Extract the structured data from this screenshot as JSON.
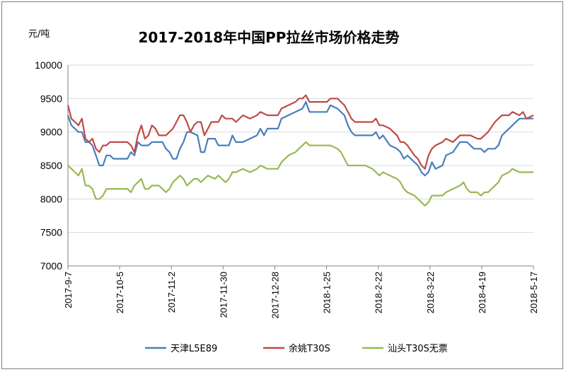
{
  "chart_data": {
    "type": "line",
    "title": "2017-2018年中国PP拉丝市场价格走势",
    "ylabel": "元/吨",
    "xlabel": "",
    "ylim": [
      7000,
      10000
    ],
    "y_ticks": [
      "10000",
      "9500",
      "9000",
      "8500",
      "8000",
      "7500",
      "7000"
    ],
    "x_tick_labels": [
      "2017-9-7",
      "2017-10-5",
      "2017-11-2",
      "2017-11-30",
      "2017-12-28",
      "2018-1-25",
      "2018-2-22",
      "2018-3-22",
      "2018-4-19",
      "2018-5-17"
    ],
    "grid": true,
    "legend_position": "bottom",
    "x_is_week_index": true,
    "series": [
      {
        "name": "天津L5E89",
        "color": "#4a7ebb",
        "points": [
          [
            0,
            9250
          ],
          [
            0.2,
            9100
          ],
          [
            0.4,
            9050
          ],
          [
            0.6,
            9000
          ],
          [
            0.8,
            9000
          ],
          [
            1.0,
            8850
          ],
          [
            1.2,
            8850
          ],
          [
            1.4,
            8800
          ],
          [
            1.6,
            8650
          ],
          [
            1.8,
            8500
          ],
          [
            2.0,
            8500
          ],
          [
            2.2,
            8650
          ],
          [
            2.4,
            8650
          ],
          [
            2.6,
            8600
          ],
          [
            3.0,
            8600
          ],
          [
            3.4,
            8600
          ],
          [
            3.6,
            8700
          ],
          [
            3.8,
            8650
          ],
          [
            4.0,
            8850
          ],
          [
            4.2,
            8800
          ],
          [
            4.6,
            8800
          ],
          [
            4.8,
            8850
          ],
          [
            5.2,
            8850
          ],
          [
            5.4,
            8850
          ],
          [
            5.6,
            8750
          ],
          [
            5.8,
            8700
          ],
          [
            6.0,
            8600
          ],
          [
            6.2,
            8600
          ],
          [
            6.4,
            8750
          ],
          [
            6.6,
            8850
          ],
          [
            6.8,
            9000
          ],
          [
            7.0,
            9000
          ],
          [
            7.4,
            8950
          ],
          [
            7.6,
            8700
          ],
          [
            7.8,
            8700
          ],
          [
            8.0,
            8900
          ],
          [
            8.4,
            8900
          ],
          [
            8.6,
            8800
          ],
          [
            9.2,
            8800
          ],
          [
            9.4,
            8950
          ],
          [
            9.6,
            8850
          ],
          [
            10.0,
            8850
          ],
          [
            10.4,
            8900
          ],
          [
            10.8,
            8950
          ],
          [
            11.0,
            9050
          ],
          [
            11.2,
            8950
          ],
          [
            11.4,
            9050
          ],
          [
            12.0,
            9050
          ],
          [
            12.2,
            9200
          ],
          [
            12.6,
            9250
          ],
          [
            13.0,
            9300
          ],
          [
            13.4,
            9350
          ],
          [
            13.6,
            9450
          ],
          [
            13.8,
            9300
          ],
          [
            14.4,
            9300
          ],
          [
            14.8,
            9300
          ],
          [
            15.0,
            9400
          ],
          [
            15.4,
            9350
          ],
          [
            15.6,
            9300
          ],
          [
            15.8,
            9250
          ],
          [
            16.0,
            9100
          ],
          [
            16.2,
            9000
          ],
          [
            16.4,
            8950
          ],
          [
            17.0,
            8950
          ],
          [
            17.4,
            8950
          ],
          [
            17.6,
            9000
          ],
          [
            17.8,
            8900
          ],
          [
            18.0,
            8950
          ],
          [
            18.4,
            8800
          ],
          [
            18.8,
            8750
          ],
          [
            19.0,
            8700
          ],
          [
            19.2,
            8600
          ],
          [
            19.4,
            8650
          ],
          [
            19.8,
            8550
          ],
          [
            20.0,
            8500
          ],
          [
            20.2,
            8400
          ],
          [
            20.4,
            8350
          ],
          [
            20.6,
            8400
          ],
          [
            20.8,
            8550
          ],
          [
            21.0,
            8450
          ],
          [
            21.4,
            8500
          ],
          [
            21.6,
            8650
          ],
          [
            22.0,
            8700
          ],
          [
            22.4,
            8850
          ],
          [
            22.8,
            8850
          ],
          [
            23.0,
            8800
          ],
          [
            23.2,
            8750
          ],
          [
            23.6,
            8750
          ],
          [
            23.8,
            8700
          ],
          [
            24.0,
            8750
          ],
          [
            24.4,
            8750
          ],
          [
            24.6,
            8800
          ],
          [
            24.8,
            8950
          ],
          [
            25.2,
            9050
          ],
          [
            25.4,
            9100
          ],
          [
            25.8,
            9200
          ],
          [
            26.0,
            9200
          ],
          [
            26.6,
            9200
          ]
        ]
      },
      {
        "name": "余姚T30S",
        "color": "#be4b48",
        "points": [
          [
            0,
            9400
          ],
          [
            0.2,
            9200
          ],
          [
            0.4,
            9150
          ],
          [
            0.6,
            9100
          ],
          [
            0.8,
            9200
          ],
          [
            1.0,
            8900
          ],
          [
            1.2,
            8850
          ],
          [
            1.4,
            8900
          ],
          [
            1.6,
            8750
          ],
          [
            1.8,
            8700
          ],
          [
            2.0,
            8800
          ],
          [
            2.2,
            8800
          ],
          [
            2.4,
            8850
          ],
          [
            3.0,
            8850
          ],
          [
            3.4,
            8850
          ],
          [
            3.6,
            8800
          ],
          [
            3.8,
            8700
          ],
          [
            4.0,
            8950
          ],
          [
            4.2,
            9100
          ],
          [
            4.4,
            8900
          ],
          [
            4.6,
            8950
          ],
          [
            4.8,
            9100
          ],
          [
            5.0,
            9050
          ],
          [
            5.2,
            8950
          ],
          [
            5.4,
            8950
          ],
          [
            5.6,
            8950
          ],
          [
            5.8,
            9000
          ],
          [
            6.0,
            9050
          ],
          [
            6.2,
            9150
          ],
          [
            6.4,
            9250
          ],
          [
            6.6,
            9250
          ],
          [
            6.8,
            9150
          ],
          [
            7.0,
            9000
          ],
          [
            7.2,
            9100
          ],
          [
            7.4,
            9150
          ],
          [
            7.6,
            9150
          ],
          [
            7.8,
            8950
          ],
          [
            8.0,
            9050
          ],
          [
            8.2,
            9150
          ],
          [
            8.6,
            9150
          ],
          [
            8.8,
            9250
          ],
          [
            9.0,
            9200
          ],
          [
            9.4,
            9200
          ],
          [
            9.6,
            9150
          ],
          [
            10.0,
            9250
          ],
          [
            10.4,
            9200
          ],
          [
            10.8,
            9250
          ],
          [
            11.0,
            9300
          ],
          [
            11.4,
            9250
          ],
          [
            11.6,
            9250
          ],
          [
            12.0,
            9250
          ],
          [
            12.2,
            9350
          ],
          [
            12.6,
            9400
          ],
          [
            13.0,
            9450
          ],
          [
            13.2,
            9500
          ],
          [
            13.4,
            9500
          ],
          [
            13.6,
            9550
          ],
          [
            13.8,
            9450
          ],
          [
            14.4,
            9450
          ],
          [
            14.8,
            9450
          ],
          [
            15.0,
            9500
          ],
          [
            15.4,
            9500
          ],
          [
            15.6,
            9450
          ],
          [
            15.8,
            9400
          ],
          [
            16.0,
            9300
          ],
          [
            16.2,
            9200
          ],
          [
            16.4,
            9150
          ],
          [
            17.0,
            9150
          ],
          [
            17.4,
            9150
          ],
          [
            17.6,
            9200
          ],
          [
            17.8,
            9100
          ],
          [
            18.0,
            9100
          ],
          [
            18.4,
            9050
          ],
          [
            18.8,
            8950
          ],
          [
            19.0,
            8850
          ],
          [
            19.2,
            8850
          ],
          [
            19.4,
            8800
          ],
          [
            19.8,
            8650
          ],
          [
            20.0,
            8600
          ],
          [
            20.2,
            8500
          ],
          [
            20.4,
            8450
          ],
          [
            20.6,
            8650
          ],
          [
            20.8,
            8750
          ],
          [
            21.0,
            8800
          ],
          [
            21.4,
            8850
          ],
          [
            21.6,
            8900
          ],
          [
            22.0,
            8850
          ],
          [
            22.4,
            8950
          ],
          [
            22.8,
            8950
          ],
          [
            23.0,
            8950
          ],
          [
            23.4,
            8900
          ],
          [
            23.6,
            8900
          ],
          [
            23.8,
            8950
          ],
          [
            24.0,
            9000
          ],
          [
            24.4,
            9150
          ],
          [
            24.6,
            9200
          ],
          [
            24.8,
            9250
          ],
          [
            25.2,
            9250
          ],
          [
            25.4,
            9300
          ],
          [
            25.8,
            9250
          ],
          [
            26.0,
            9300
          ],
          [
            26.2,
            9200
          ],
          [
            26.6,
            9250
          ]
        ]
      },
      {
        "name": "汕头T30S无票",
        "color": "#98b954",
        "points": [
          [
            0,
            8500
          ],
          [
            0.2,
            8450
          ],
          [
            0.4,
            8400
          ],
          [
            0.6,
            8350
          ],
          [
            0.8,
            8450
          ],
          [
            1.0,
            8200
          ],
          [
            1.2,
            8200
          ],
          [
            1.4,
            8150
          ],
          [
            1.6,
            8000
          ],
          [
            1.8,
            8000
          ],
          [
            2.0,
            8050
          ],
          [
            2.2,
            8150
          ],
          [
            2.4,
            8150
          ],
          [
            3.0,
            8150
          ],
          [
            3.4,
            8150
          ],
          [
            3.6,
            8100
          ],
          [
            3.8,
            8200
          ],
          [
            4.0,
            8250
          ],
          [
            4.2,
            8300
          ],
          [
            4.4,
            8150
          ],
          [
            4.6,
            8150
          ],
          [
            4.8,
            8200
          ],
          [
            5.2,
            8200
          ],
          [
            5.4,
            8150
          ],
          [
            5.6,
            8100
          ],
          [
            5.8,
            8150
          ],
          [
            6.0,
            8250
          ],
          [
            6.2,
            8300
          ],
          [
            6.4,
            8350
          ],
          [
            6.6,
            8300
          ],
          [
            6.8,
            8200
          ],
          [
            7.0,
            8250
          ],
          [
            7.2,
            8300
          ],
          [
            7.4,
            8300
          ],
          [
            7.6,
            8250
          ],
          [
            7.8,
            8300
          ],
          [
            8.0,
            8350
          ],
          [
            8.4,
            8300
          ],
          [
            8.6,
            8350
          ],
          [
            8.8,
            8300
          ],
          [
            9.0,
            8250
          ],
          [
            9.2,
            8300
          ],
          [
            9.4,
            8400
          ],
          [
            9.6,
            8400
          ],
          [
            10.0,
            8450
          ],
          [
            10.4,
            8400
          ],
          [
            10.8,
            8450
          ],
          [
            11.0,
            8500
          ],
          [
            11.4,
            8450
          ],
          [
            12.0,
            8450
          ],
          [
            12.2,
            8550
          ],
          [
            12.6,
            8650
          ],
          [
            13.0,
            8700
          ],
          [
            13.4,
            8800
          ],
          [
            13.6,
            8850
          ],
          [
            13.8,
            8800
          ],
          [
            14.4,
            8800
          ],
          [
            14.8,
            8800
          ],
          [
            15.0,
            8800
          ],
          [
            15.4,
            8750
          ],
          [
            15.6,
            8700
          ],
          [
            15.8,
            8600
          ],
          [
            16.0,
            8500
          ],
          [
            16.4,
            8500
          ],
          [
            17.0,
            8500
          ],
          [
            17.4,
            8450
          ],
          [
            17.6,
            8400
          ],
          [
            17.8,
            8350
          ],
          [
            18.0,
            8400
          ],
          [
            18.4,
            8350
          ],
          [
            18.8,
            8300
          ],
          [
            19.0,
            8250
          ],
          [
            19.2,
            8150
          ],
          [
            19.4,
            8100
          ],
          [
            19.8,
            8050
          ],
          [
            20.0,
            8000
          ],
          [
            20.2,
            7950
          ],
          [
            20.4,
            7900
          ],
          [
            20.6,
            7950
          ],
          [
            20.8,
            8050
          ],
          [
            21.0,
            8050
          ],
          [
            21.4,
            8050
          ],
          [
            21.6,
            8100
          ],
          [
            22.0,
            8150
          ],
          [
            22.4,
            8200
          ],
          [
            22.6,
            8250
          ],
          [
            22.8,
            8150
          ],
          [
            23.0,
            8100
          ],
          [
            23.4,
            8100
          ],
          [
            23.6,
            8050
          ],
          [
            23.8,
            8100
          ],
          [
            24.0,
            8100
          ],
          [
            24.4,
            8200
          ],
          [
            24.6,
            8250
          ],
          [
            24.8,
            8350
          ],
          [
            25.2,
            8400
          ],
          [
            25.4,
            8450
          ],
          [
            25.8,
            8400
          ],
          [
            26.0,
            8400
          ],
          [
            26.6,
            8400
          ]
        ]
      }
    ]
  }
}
